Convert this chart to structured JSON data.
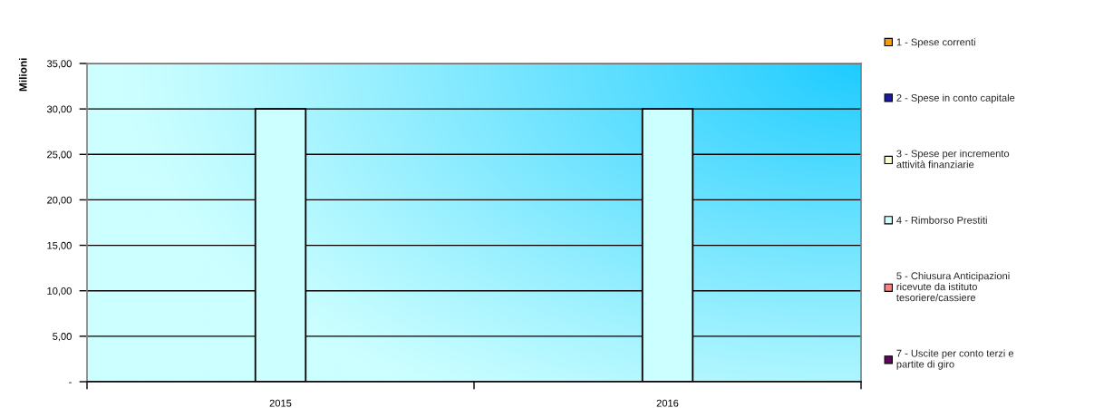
{
  "chart_data": {
    "type": "bar",
    "stacked": true,
    "ylabel": "Milioni",
    "categories": [
      "2015",
      "2016"
    ],
    "series": [
      {
        "name": "1 - Spese correnti",
        "color": "#ff9900",
        "values": [
          null,
          null
        ]
      },
      {
        "name": "2 - Spese in conto capitale",
        "color": "#1a1aa6",
        "values": [
          null,
          null
        ]
      },
      {
        "name": "3 - Spese per incremento\nattività finanziarie",
        "color": "#ffffcc",
        "values": [
          null,
          null
        ]
      },
      {
        "name": "4 - Rimborso Prestiti",
        "color": "#ccffff",
        "values": [
          30,
          30
        ]
      },
      {
        "name": "5 - Chiusura Anticipazioni\nricevute da istituto\ntesoriere/cassiere",
        "color": "#ff8080",
        "values": [
          null,
          null
        ]
      },
      {
        "name": "7 - Uscite per conto terzi e\npartite di giro",
        "color": "#660066",
        "values": [
          null,
          null
        ]
      }
    ],
    "ylim": [
      0,
      35
    ],
    "yticks": [
      {
        "value": 0,
        "label": "-"
      },
      {
        "value": 5,
        "label": "5,00"
      },
      {
        "value": 10,
        "label": "10,00"
      },
      {
        "value": 15,
        "label": "15,00"
      },
      {
        "value": 20,
        "label": "20,00"
      },
      {
        "value": 25,
        "label": "25,00"
      },
      {
        "value": 30,
        "label": "30,00"
      },
      {
        "value": 35,
        "label": "35,00"
      }
    ],
    "grid": "y",
    "legend": "right"
  }
}
